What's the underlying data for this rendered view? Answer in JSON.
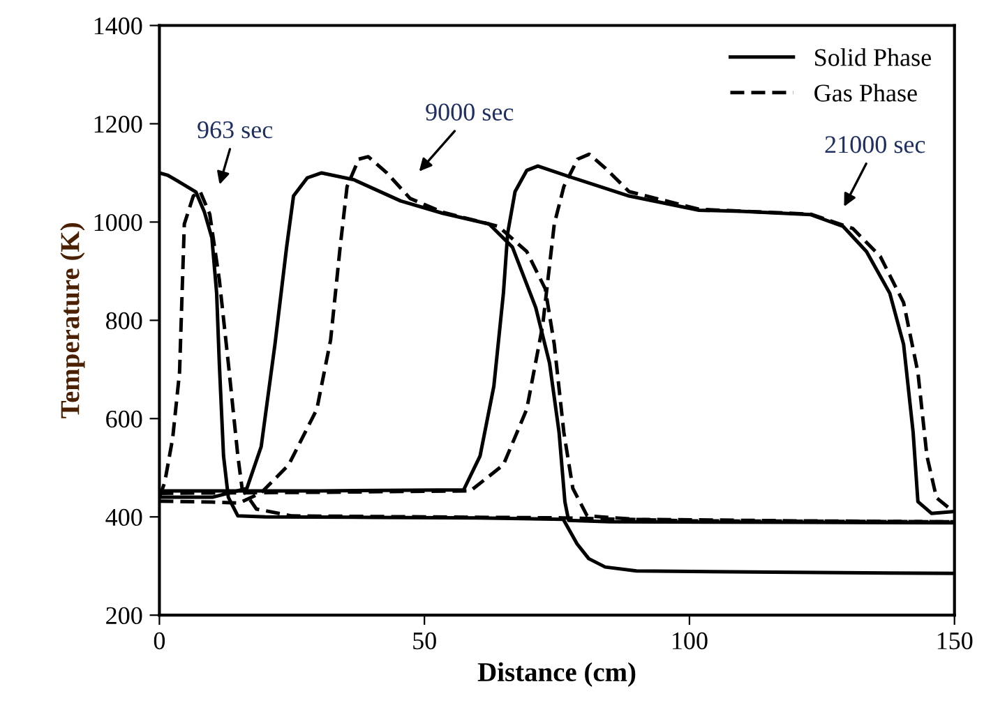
{
  "chart_data": {
    "type": "line",
    "xlabel": "Distance (cm)",
    "ylabel": "Temperature (K)",
    "xlim": [
      0,
      150
    ],
    "ylim": [
      200,
      1400
    ],
    "xticks": [
      0,
      50,
      100,
      150
    ],
    "yticks": [
      200,
      400,
      600,
      800,
      1000,
      1200,
      1400
    ],
    "grid": false,
    "legend": "top right",
    "marker": "none",
    "series": [
      {
        "name": "Solid Phase",
        "color": "#000000",
        "line_style": "solid",
        "x": [
          0,
          1.6,
          4,
          6.9,
          8.5,
          9.9,
          10.8,
          11.3,
          12.1,
          13,
          14.8,
          20,
          40,
          60,
          76.2,
          78.8,
          81,
          84.1,
          90,
          120,
          150
        ],
        "values": [
          1100,
          1095,
          1080,
          1061,
          1020,
          968,
          855,
          713,
          524,
          440,
          402,
          400,
          399,
          398,
          395,
          345,
          315,
          298,
          290,
          287,
          285
        ]
      },
      {
        "name": "Gas Phase",
        "color": "#000000",
        "line_style": "dashed",
        "x": [
          0,
          1,
          2.5,
          3.8,
          4.7,
          6.4,
          7.7,
          9.5,
          11.3,
          13,
          14.8,
          15.6,
          18.3,
          25,
          50,
          76,
          100,
          150
        ],
        "values": [
          440,
          470,
          560,
          694,
          996,
          1053,
          1062,
          1016,
          883,
          713,
          524,
          458,
          416,
          402,
          400,
          398,
          392,
          390
        ]
      },
      {
        "color": "#000000",
        "line_style": "solid",
        "x": [
          0,
          10,
          16.5,
          19.2,
          21.8,
          24,
          25.3,
          27.9,
          30.6,
          36.7,
          45.5,
          53.4,
          62.2,
          66.6,
          71,
          73.6,
          75.4,
          76.5,
          77.2,
          85,
          120,
          150
        ],
        "values": [
          440,
          440,
          458,
          543,
          751,
          949,
          1053,
          1090,
          1100,
          1086,
          1043,
          1018,
          996,
          949,
          826,
          713,
          572,
          431,
          393,
          390,
          389,
          388
        ]
      },
      {
        "color": "#000000",
        "line_style": "dashed",
        "x": [
          0,
          10,
          15,
          19.2,
          24.4,
          29.7,
          32.3,
          34.1,
          35.4,
          37.6,
          39.4,
          42.9,
          47.3,
          53.4,
          64,
          69.3,
          72.8,
          74.5,
          76.3,
          78,
          80.7,
          90,
          120,
          150
        ],
        "values": [
          432,
          430,
          428,
          449,
          506,
          619,
          760,
          949,
          1072,
          1128,
          1133,
          1100,
          1048,
          1020,
          991,
          940,
          864,
          751,
          572,
          458,
          402,
          395,
          392,
          390
        ]
      },
      {
        "color": "#000000",
        "line_style": "solid",
        "x": [
          0,
          30,
          57.4,
          60.5,
          63.1,
          64.9,
          65.7,
          67.1,
          69.3,
          71.4,
          78,
          88.6,
          101.8,
          109.7,
          122.9,
          129,
          133.4,
          137.8,
          140.4,
          142.2,
          143.1,
          145.7,
          150
        ],
        "values": [
          453,
          453,
          455,
          524,
          666,
          855,
          977,
          1062,
          1105,
          1114,
          1090,
          1053,
          1024,
          1022,
          1015,
          991,
          940,
          855,
          751,
          572,
          431,
          407,
          411
        ]
      },
      {
        "color": "#000000",
        "line_style": "dashed",
        "x": [
          0,
          30,
          58.7,
          64.9,
          69.3,
          72.3,
          74.5,
          76.3,
          78.9,
          81.1,
          84.2,
          88.6,
          101.8,
          122.9,
          130.8,
          136,
          140.4,
          143.1,
          144.8,
          146.6,
          149.2,
          150
        ],
        "values": [
          448,
          450,
          453,
          506,
          619,
          789,
          996,
          1072,
          1128,
          1138,
          1109,
          1062,
          1026,
          1016,
          987,
          930,
          836,
          694,
          524,
          439,
          416,
          415
        ]
      }
    ],
    "annotations": [
      "963 sec",
      "9000 sec",
      "21000 sec"
    ]
  }
}
